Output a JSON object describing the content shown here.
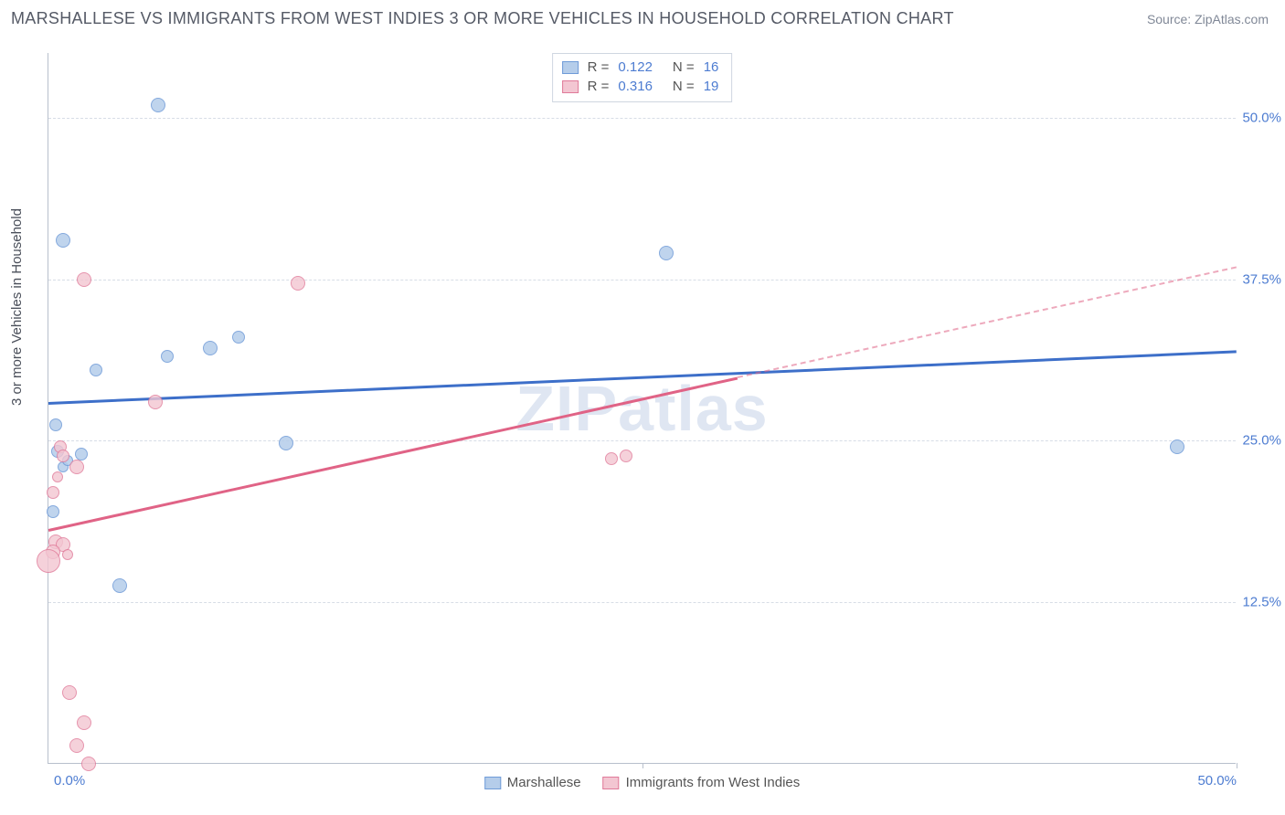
{
  "title": "MARSHALLESE VS IMMIGRANTS FROM WEST INDIES 3 OR MORE VEHICLES IN HOUSEHOLD CORRELATION CHART",
  "source": "Source: ZipAtlas.com",
  "watermark": "ZIPatlas",
  "ylabel": "3 or more Vehicles in Household",
  "chart": {
    "type": "scatter",
    "xlim": [
      0,
      50
    ],
    "ylim": [
      0,
      55
    ],
    "x_ticks": [
      0,
      25,
      50
    ],
    "x_tick_labels": [
      "0.0%",
      "",
      "50.0%"
    ],
    "y_ticks": [
      12.5,
      25,
      37.5,
      50
    ],
    "y_tick_labels": [
      "12.5%",
      "25.0%",
      "37.5%",
      "50.0%"
    ],
    "grid_color": "#d7dde6",
    "axis_color": "#b8c0cc",
    "background_color": "#ffffff",
    "tick_label_color": "#4d7cd1",
    "tick_label_fontsize": 15,
    "series": [
      {
        "id": "marshallese",
        "label": "Marshallese",
        "fill_color": "#b5cdea",
        "stroke_color": "#6f9bd8",
        "marker_alpha": 0.85,
        "marker_radius_range": [
          6,
          13
        ],
        "R": 0.122,
        "N": 16,
        "trend": {
          "x1": 0,
          "y1": 28,
          "x2": 50,
          "y2": 32,
          "solid_to_x": 50,
          "color": "#3d6fc9",
          "width": 2.5
        },
        "points": [
          {
            "x": 0.6,
            "y": 40.5,
            "r": 8
          },
          {
            "x": 4.6,
            "y": 51.0,
            "r": 8
          },
          {
            "x": 6.8,
            "y": 32.2,
            "r": 8
          },
          {
            "x": 5.0,
            "y": 31.5,
            "r": 7
          },
          {
            "x": 2.0,
            "y": 30.5,
            "r": 7
          },
          {
            "x": 8.0,
            "y": 33.0,
            "r": 7
          },
          {
            "x": 0.3,
            "y": 26.2,
            "r": 7
          },
          {
            "x": 0.4,
            "y": 24.2,
            "r": 7
          },
          {
            "x": 1.4,
            "y": 24.0,
            "r": 7
          },
          {
            "x": 0.6,
            "y": 23.0,
            "r": 6
          },
          {
            "x": 10.0,
            "y": 24.8,
            "r": 8
          },
          {
            "x": 0.2,
            "y": 19.5,
            "r": 7
          },
          {
            "x": 3.0,
            "y": 13.8,
            "r": 8
          },
          {
            "x": 26.0,
            "y": 39.5,
            "r": 8
          },
          {
            "x": 47.5,
            "y": 24.5,
            "r": 8
          },
          {
            "x": 0.8,
            "y": 23.5,
            "r": 6
          }
        ]
      },
      {
        "id": "west_indies",
        "label": "Immigrants from West Indies",
        "fill_color": "#f3c6d2",
        "stroke_color": "#e07a99",
        "marker_alpha": 0.8,
        "marker_radius_range": [
          6,
          14
        ],
        "R": 0.316,
        "N": 19,
        "trend": {
          "x1": 0,
          "y1": 18.2,
          "x2": 50,
          "y2": 38.5,
          "solid_to_x": 29,
          "color": "#e06386",
          "width": 2.5
        },
        "points": [
          {
            "x": 1.5,
            "y": 37.5,
            "r": 8
          },
          {
            "x": 10.5,
            "y": 37.2,
            "r": 8
          },
          {
            "x": 4.5,
            "y": 28.0,
            "r": 8
          },
          {
            "x": 0.5,
            "y": 24.5,
            "r": 7
          },
          {
            "x": 0.6,
            "y": 23.8,
            "r": 7
          },
          {
            "x": 1.2,
            "y": 23.0,
            "r": 8
          },
          {
            "x": 0.2,
            "y": 21.0,
            "r": 7
          },
          {
            "x": 0.3,
            "y": 17.2,
            "r": 8
          },
          {
            "x": 0.6,
            "y": 17.0,
            "r": 8
          },
          {
            "x": 0.2,
            "y": 16.4,
            "r": 8
          },
          {
            "x": 0.0,
            "y": 15.7,
            "r": 13
          },
          {
            "x": 0.9,
            "y": 5.5,
            "r": 8
          },
          {
            "x": 1.5,
            "y": 3.2,
            "r": 8
          },
          {
            "x": 1.2,
            "y": 1.4,
            "r": 8
          },
          {
            "x": 1.7,
            "y": 0.0,
            "r": 8
          },
          {
            "x": 23.7,
            "y": 23.6,
            "r": 7
          },
          {
            "x": 24.3,
            "y": 23.8,
            "r": 7
          },
          {
            "x": 0.4,
            "y": 22.2,
            "r": 6
          },
          {
            "x": 0.8,
            "y": 16.2,
            "r": 6
          }
        ]
      }
    ]
  },
  "legend_top_labels": {
    "R": "R =",
    "N": "N ="
  },
  "legend_bottom": [
    {
      "swatch_fill": "#b5cdea",
      "swatch_stroke": "#6f9bd8",
      "label_ref": 0
    },
    {
      "swatch_fill": "#f3c6d2",
      "swatch_stroke": "#e07a99",
      "label_ref": 1
    }
  ]
}
